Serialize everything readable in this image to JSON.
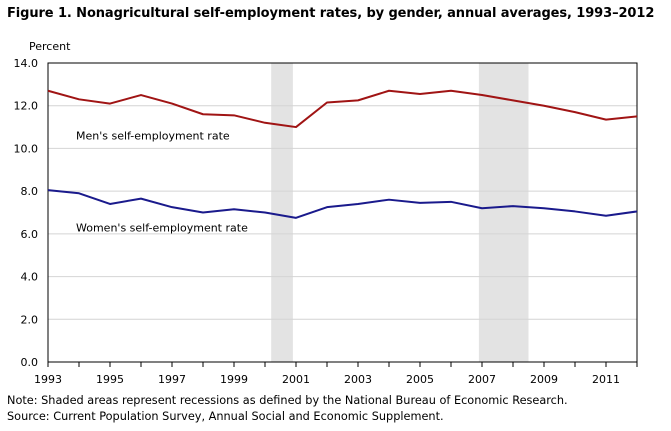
{
  "title": "Figure 1. Nonagricultural self-employment rates, by gender, annual averages, 1993–2012",
  "notes": {
    "line1": "Note: Shaded areas represent recessions as defined by the National Bureau of Economic Research.",
    "line2": "Source: Current Population Survey, Annual Social and Economic Supplement."
  },
  "chart_data": {
    "type": "line",
    "title": "Figure 1. Nonagricultural self-employment rates, by gender, annual averages, 1993–2012",
    "ylabel": "Percent",
    "xlabel": "",
    "xlim": [
      1993,
      2012
    ],
    "ylim": [
      0,
      14
    ],
    "yticks": [
      "0.0",
      "2.0",
      "4.0",
      "6.0",
      "8.0",
      "10.0",
      "12.0",
      "14.0"
    ],
    "xticks": [
      "1993",
      "1995",
      "1997",
      "1999",
      "2001",
      "2003",
      "2005",
      "2007",
      "2009",
      "2011"
    ],
    "grid": true,
    "legend": "none",
    "recessions": [
      [
        2000.2,
        2000.9
      ],
      [
        2006.9,
        2008.5
      ]
    ],
    "recession_color": "#e3e3e3",
    "x": [
      1993,
      1994,
      1995,
      1996,
      1997,
      1998,
      1999,
      2000,
      2001,
      2002,
      2003,
      2004,
      2005,
      2006,
      2007,
      2008,
      2009,
      2010,
      2011,
      2012
    ],
    "series": [
      {
        "name": "Men's self-employment rate",
        "color": "#a01414",
        "values": [
          12.7,
          12.3,
          12.1,
          12.5,
          12.1,
          11.6,
          11.55,
          11.2,
          11.0,
          12.15,
          12.25,
          12.7,
          12.55,
          12.7,
          12.5,
          12.25,
          12.0,
          11.7,
          11.35,
          11.5
        ]
      },
      {
        "name": "Women's self-employment rate",
        "color": "#1a1a8c",
        "values": [
          8.05,
          7.9,
          7.4,
          7.65,
          7.25,
          7.0,
          7.15,
          7.0,
          6.75,
          7.25,
          7.4,
          7.6,
          7.45,
          7.5,
          7.2,
          7.3,
          7.2,
          7.05,
          6.85,
          7.05
        ]
      }
    ]
  }
}
